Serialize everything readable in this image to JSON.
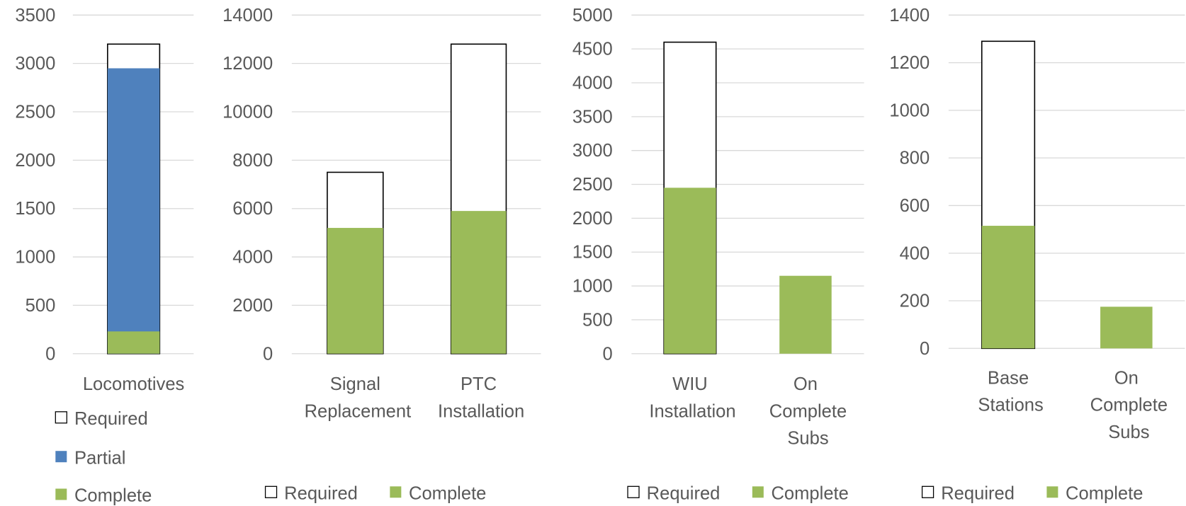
{
  "chart_data": [
    {
      "type": "bar",
      "categories": [
        "Locomotives"
      ],
      "series": [
        {
          "name": "Required",
          "color": "#ffffff",
          "values": [
            3200
          ]
        },
        {
          "name": "Partial",
          "color": "#4f81bd",
          "values": [
            2950
          ]
        },
        {
          "name": "Complete",
          "color": "#9bbb59",
          "values": [
            230
          ]
        }
      ],
      "ylim": [
        0,
        3500
      ],
      "yticks": [
        0,
        500,
        1000,
        1500,
        2000,
        2500,
        3000,
        3500
      ],
      "grid": true,
      "legend": "bottom",
      "legend_orientation": "vertical"
    },
    {
      "type": "bar",
      "categories": [
        "Signal Replacement",
        "PTC Installation"
      ],
      "series": [
        {
          "name": "Required",
          "color": "#ffffff",
          "values": [
            7500,
            12800
          ]
        },
        {
          "name": "Complete",
          "color": "#9bbb59",
          "values": [
            5200,
            5900
          ]
        }
      ],
      "ylim": [
        0,
        14000
      ],
      "yticks": [
        0,
        2000,
        4000,
        6000,
        8000,
        10000,
        12000,
        14000
      ],
      "grid": true,
      "legend": "bottom",
      "legend_orientation": "horizontal"
    },
    {
      "type": "bar",
      "categories": [
        "WIU Installation",
        "On Complete Subs"
      ],
      "series": [
        {
          "name": "Required",
          "color": "#ffffff",
          "values": [
            4600,
            null
          ]
        },
        {
          "name": "Complete",
          "color": "#9bbb59",
          "values": [
            2450,
            1150
          ]
        }
      ],
      "ylim": [
        0,
        5000
      ],
      "yticks": [
        0,
        500,
        1000,
        1500,
        2000,
        2500,
        3000,
        3500,
        4000,
        4500,
        5000
      ],
      "grid": true,
      "legend": "bottom",
      "legend_orientation": "horizontal"
    },
    {
      "type": "bar",
      "categories": [
        "Base Stations",
        "On Complete Subs"
      ],
      "series": [
        {
          "name": "Required",
          "color": "#ffffff",
          "values": [
            1290,
            null
          ]
        },
        {
          "name": "Complete",
          "color": "#9bbb59",
          "values": [
            515,
            175
          ]
        }
      ],
      "ylim": [
        0,
        1400
      ],
      "yticks": [
        0,
        200,
        400,
        600,
        800,
        1000,
        1200,
        1400
      ],
      "grid": true,
      "legend": "bottom",
      "legend_orientation": "horizontal"
    }
  ]
}
